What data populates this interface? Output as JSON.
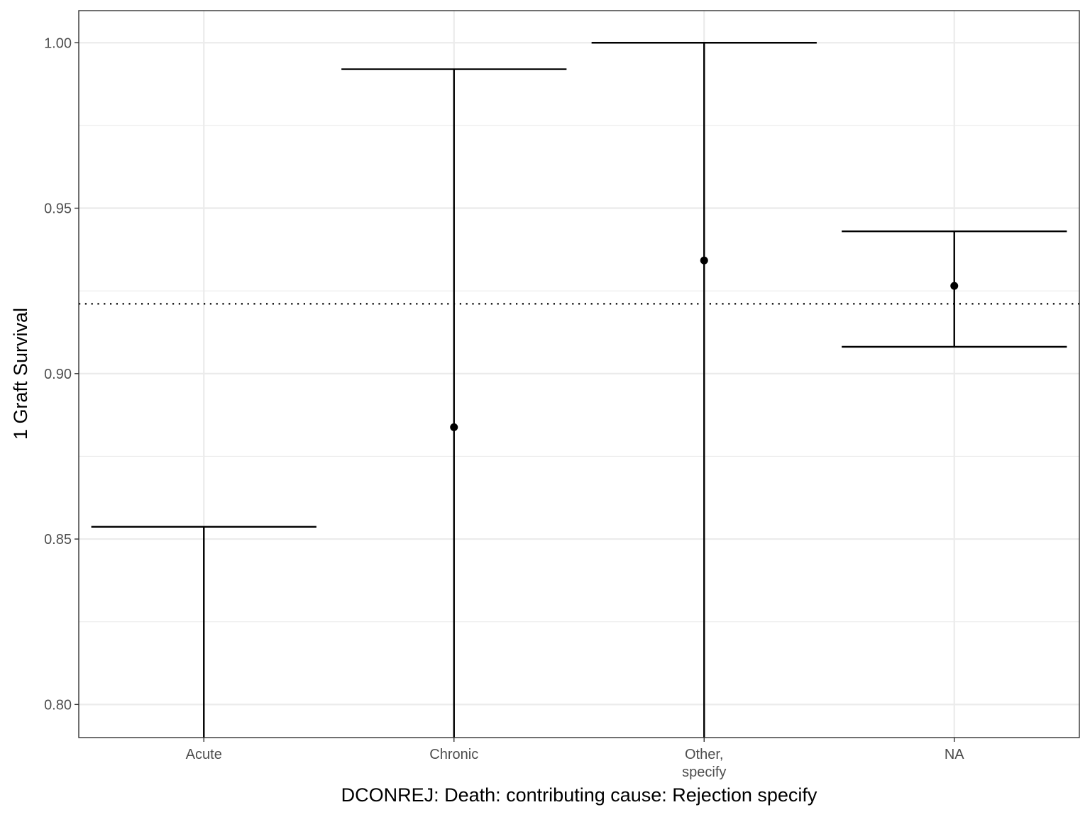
{
  "chart_data": {
    "type": "errorbar",
    "xlabel": "DCONREJ: Death: contributing cause: Rejection specify",
    "ylabel": "1 Graft Survival",
    "categories": [
      "Acute",
      "Chronic",
      "Other,\nspecify",
      "NA"
    ],
    "points": [
      {
        "category": "Acute",
        "estimate": null,
        "lower": 0.79,
        "upper": 0.8537
      },
      {
        "category": "Chronic",
        "estimate": 0.8838,
        "lower": 0.79,
        "upper": 0.992
      },
      {
        "category": "Other,\nspecify",
        "estimate": 0.9342,
        "lower": 0.79,
        "upper": 1.0
      },
      {
        "category": "NA",
        "estimate": 0.9265,
        "lower": 0.9081,
        "upper": 0.943
      }
    ],
    "reference_line": {
      "y": 0.9211,
      "style": "dotted"
    },
    "ylim": [
      0.79,
      1.0097
    ],
    "yticks": [
      0.8,
      0.85,
      0.9,
      0.95,
      1.0
    ],
    "ytick_labels": [
      "0.80",
      "0.85",
      "0.90",
      "0.95",
      "1.00"
    ],
    "grid": true,
    "theme": "bw"
  }
}
